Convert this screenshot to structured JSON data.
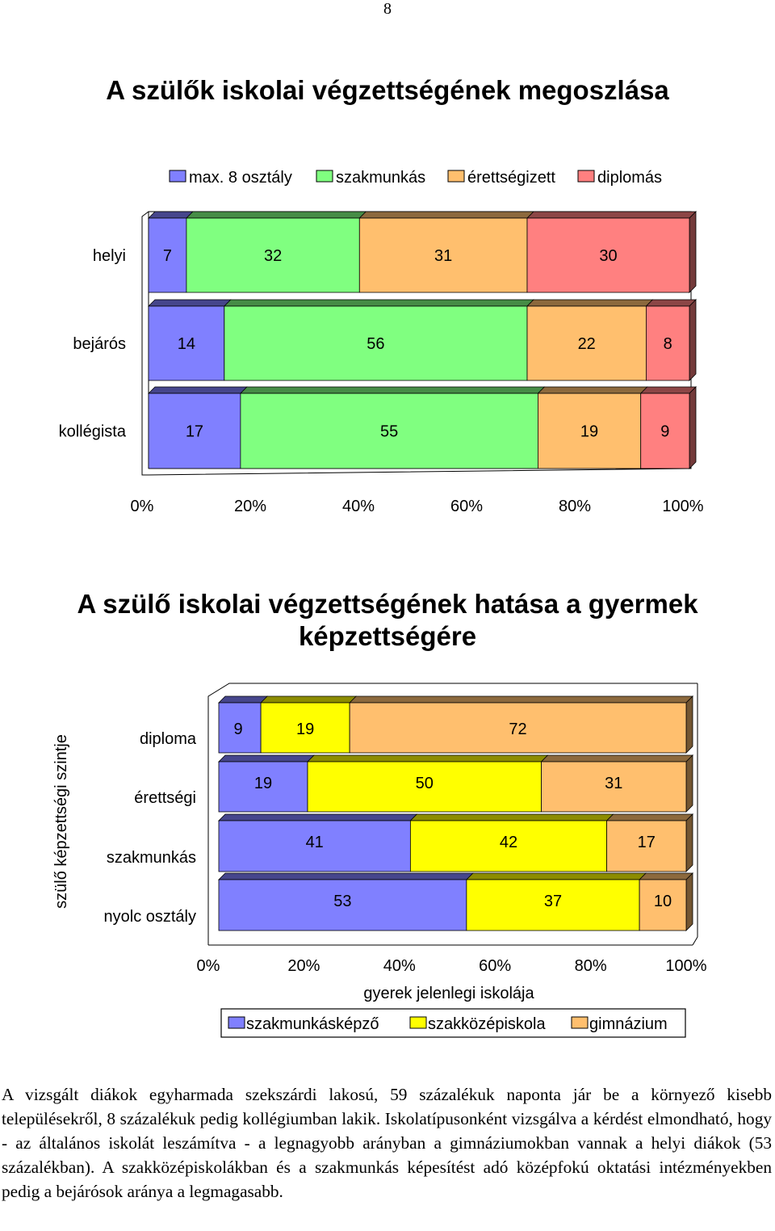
{
  "page_number": "8",
  "chart1_title": "A szülők iskolai végzettségének megoszlása",
  "chart2_title_lines": [
    "A szülő iskolai végzettségének hatása a gyermek",
    "képzettségére"
  ],
  "paragraph": "A vizsgált diákok egyharmada szekszárdi lakosú, 59 százalékuk naponta jár be a környező kisebb településekről, 8 százalékuk pedig kollégiumban lakik. Iskolatípusonként vizsgálva a kérdést elmondható, hogy - az általános iskolát leszámítva - a legnagyobb arányban a gimnáziumokban vannak a helyi diákok (53 százalékban). A szakközépiskolákban és a szakmunkás képesítést adó középfokú oktatási intézményekben pedig a bejárósok aránya a legmagasabb.",
  "colors": {
    "max8": "#8080ff",
    "szakmunkas": "#80ff80",
    "erettsegi": "#ffbf6e",
    "diplomas": "#ff8080",
    "szakmunkaskepzo": "#8080ff",
    "szakkozep": "#ffff00",
    "gimnazium": "#ffbf6e"
  },
  "chart_data": [
    {
      "type": "bar",
      "orientation": "horizontal",
      "stacked": "percent",
      "title": "A szülők iskolai végzettségének megoszlása",
      "categories": [
        "helyi",
        "bejárós",
        "kollégista"
      ],
      "series": [
        {
          "name": "max. 8 osztály",
          "values": [
            7,
            14,
            17
          ]
        },
        {
          "name": "szakmunkás",
          "values": [
            32,
            56,
            55
          ]
        },
        {
          "name": "érettségizett",
          "values": [
            31,
            22,
            19
          ]
        },
        {
          "name": "diplomás",
          "values": [
            30,
            8,
            9
          ]
        }
      ],
      "xticks": [
        "0%",
        "20%",
        "40%",
        "60%",
        "80%",
        "100%"
      ],
      "xlim": [
        0,
        100
      ],
      "legend": "top",
      "three_d": true
    },
    {
      "type": "bar",
      "orientation": "horizontal",
      "stacked": "percent",
      "title": "A szülő iskolai végzettségének hatása a gyermek képzettségére",
      "categories": [
        "diploma",
        "érettségi",
        "szakmunkás",
        "nyolc osztály"
      ],
      "series": [
        {
          "name": "szakmunkásképző",
          "values": [
            9,
            19,
            41,
            53
          ]
        },
        {
          "name": "szakközépiskola",
          "values": [
            19,
            50,
            42,
            37
          ]
        },
        {
          "name": "gimnázium",
          "values": [
            72,
            31,
            17,
            10
          ]
        }
      ],
      "xticks": [
        "0%",
        "20%",
        "40%",
        "60%",
        "80%",
        "100%"
      ],
      "xlim": [
        0,
        100
      ],
      "xlabel": "gyerek jelenlegi iskolája",
      "ylabel": "szülő képzettségi szintje",
      "legend": "bottom",
      "three_d": true
    }
  ]
}
